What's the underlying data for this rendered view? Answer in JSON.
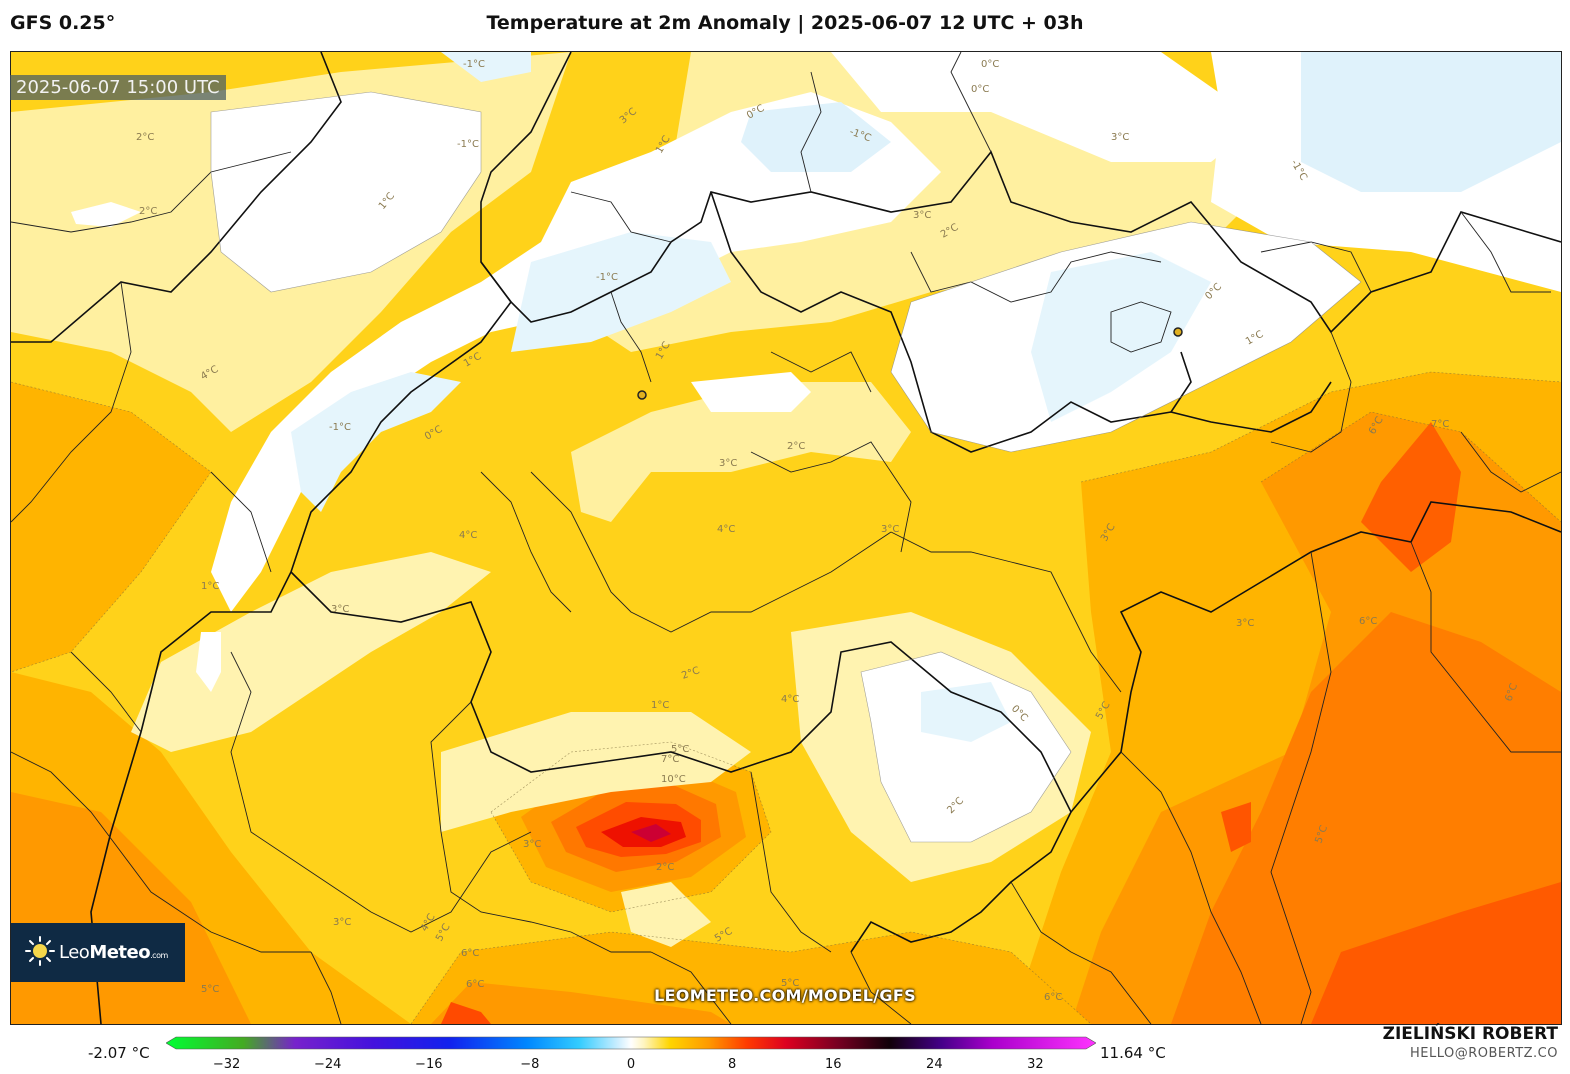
{
  "header": {
    "model": "GFS 0.25°",
    "title": "Temperature at 2m Anomaly | 2025-06-07 12 UTC + 03h"
  },
  "map": {
    "timestamp": "2025-06-07 15:00 UTC",
    "watermark_url": "LEOMETEO.COM/MODEL/GFS",
    "logo": {
      "brand_light": "Leo",
      "brand_bold": "Meteo",
      "domain": ".com"
    },
    "contour_labels": [
      {
        "t": "-1°C"
      },
      {
        "t": "0°C"
      },
      {
        "t": "-1°C"
      },
      {
        "t": "0°C"
      },
      {
        "t": "3°C"
      },
      {
        "t": "2°C"
      },
      {
        "t": "-1°C"
      },
      {
        "t": "3°C"
      },
      {
        "t": "-1°C"
      },
      {
        "t": "1°C"
      },
      {
        "t": "2°C"
      },
      {
        "t": "1°C"
      },
      {
        "t": "-1°C"
      },
      {
        "t": "3°C"
      },
      {
        "t": "2°C"
      },
      {
        "t": "0°C"
      },
      {
        "t": "1°C"
      },
      {
        "t": "0°C"
      },
      {
        "t": "4°C"
      },
      {
        "t": "1°C"
      },
      {
        "t": "-1°C"
      },
      {
        "t": "0°C"
      },
      {
        "t": "1°C"
      },
      {
        "t": "2°C"
      },
      {
        "t": "3°C"
      },
      {
        "t": "4°C"
      },
      {
        "t": "3°C"
      },
      {
        "t": "6°C"
      },
      {
        "t": "7°C"
      },
      {
        "t": "4°C"
      },
      {
        "t": "1°C"
      },
      {
        "t": "3°C"
      },
      {
        "t": "2°C"
      },
      {
        "t": "1°C"
      },
      {
        "t": "0°C"
      },
      {
        "t": "6°C"
      },
      {
        "t": "4°C"
      },
      {
        "t": "5°C"
      },
      {
        "t": "7°C"
      },
      {
        "t": "10°C"
      },
      {
        "t": "3°C"
      },
      {
        "t": "2°C"
      },
      {
        "t": "3°C"
      },
      {
        "t": "4°C"
      },
      {
        "t": "5°C"
      },
      {
        "t": "6°C"
      },
      {
        "t": "5°C"
      },
      {
        "t": "5°C"
      },
      {
        "t": "6°C"
      },
      {
        "t": "5°C"
      },
      {
        "t": "6°C"
      },
      {
        "t": "5°C"
      },
      {
        "t": "2°C"
      },
      {
        "t": "3°C"
      },
      {
        "t": "5°C"
      },
      {
        "t": "6°C"
      },
      {
        "t": "3°C"
      }
    ]
  },
  "legend": {
    "min_label": "-2.07 °C",
    "max_label": "11.64 °C",
    "ticks": [
      "−32",
      "−24",
      "−16",
      "−8",
      "0",
      "8",
      "16",
      "24",
      "32"
    ],
    "tick_values": [
      -32,
      -24,
      -16,
      -8,
      0,
      8,
      16,
      24,
      32
    ],
    "range": [
      -36,
      36
    ],
    "stops": [
      {
        "v": -36,
        "c": "#00ff33"
      },
      {
        "v": -30,
        "c": "#44aa22"
      },
      {
        "v": -26,
        "c": "#7722cc"
      },
      {
        "v": -20,
        "c": "#4411dd"
      },
      {
        "v": -14,
        "c": "#1122ee"
      },
      {
        "v": -8,
        "c": "#0088ff"
      },
      {
        "v": -4,
        "c": "#33ccff"
      },
      {
        "v": -1,
        "c": "#cceeff"
      },
      {
        "v": 0,
        "c": "#ffffff"
      },
      {
        "v": 1,
        "c": "#fff5c0"
      },
      {
        "v": 3,
        "c": "#ffd500"
      },
      {
        "v": 6,
        "c": "#ff9a00"
      },
      {
        "v": 9,
        "c": "#ff3a00"
      },
      {
        "v": 12,
        "c": "#dd0020"
      },
      {
        "v": 16,
        "c": "#770022"
      },
      {
        "v": 20,
        "c": "#110008"
      },
      {
        "v": 24,
        "c": "#440088"
      },
      {
        "v": 28,
        "c": "#aa00cc"
      },
      {
        "v": 36,
        "c": "#ff33ff"
      }
    ]
  },
  "credit": {
    "name": "ZIELIŃSKI ROBERT",
    "email": "HELLO@ROBERTZ.CO"
  }
}
